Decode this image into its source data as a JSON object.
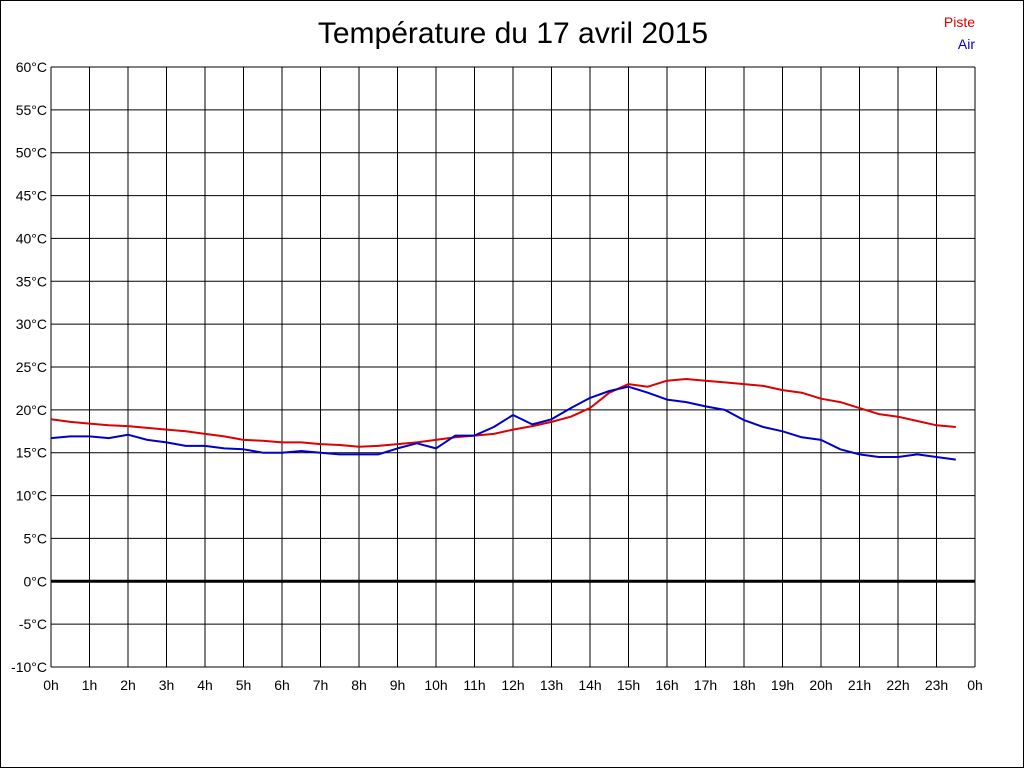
{
  "chart_data": {
    "type": "line",
    "title": "Température du 17 avril 2015",
    "xlabel": "",
    "ylabel": "",
    "x_tick_labels": [
      "0h",
      "1h",
      "2h",
      "3h",
      "4h",
      "5h",
      "6h",
      "7h",
      "8h",
      "9h",
      "10h",
      "11h",
      "12h",
      "13h",
      "14h",
      "15h",
      "16h",
      "17h",
      "18h",
      "19h",
      "20h",
      "21h",
      "22h",
      "23h",
      "0h"
    ],
    "y_tick_labels": [
      "60°C",
      "55°C",
      "50°C",
      "45°C",
      "40°C",
      "35°C",
      "30°C",
      "25°C",
      "20°C",
      "15°C",
      "10°C",
      "5°C",
      "0°C",
      "-5°C",
      "-10°C"
    ],
    "xlim": [
      0,
      24
    ],
    "ylim": [
      -10,
      60
    ],
    "grid": true,
    "legend_position": "top-right",
    "x": [
      0,
      0.5,
      1,
      1.5,
      2,
      2.5,
      3,
      3.5,
      4,
      4.5,
      5,
      5.5,
      6,
      6.5,
      7,
      7.5,
      8,
      8.5,
      9,
      9.5,
      10,
      10.5,
      11,
      11.5,
      12,
      12.5,
      13,
      13.5,
      14,
      14.5,
      15,
      15.5,
      16,
      16.5,
      17,
      17.5,
      18,
      18.5,
      19,
      19.5,
      20,
      20.5,
      21,
      21.5,
      22,
      22.5,
      23,
      23.5
    ],
    "series": [
      {
        "name": "Piste",
        "color": "#dd0000",
        "values": [
          18.9,
          18.6,
          18.4,
          18.2,
          18.1,
          17.9,
          17.7,
          17.5,
          17.2,
          16.9,
          16.5,
          16.4,
          16.2,
          16.2,
          16.0,
          15.9,
          15.7,
          15.8,
          16.0,
          16.2,
          16.5,
          16.8,
          17.0,
          17.2,
          17.7,
          18.1,
          18.6,
          19.2,
          20.2,
          22.0,
          23.0,
          22.7,
          23.4,
          23.6,
          23.4,
          23.2,
          23.0,
          22.8,
          22.3,
          22.0,
          21.3,
          20.9,
          20.2,
          19.5,
          19.2,
          18.7,
          18.2,
          18.0
        ]
      },
      {
        "name": "Air",
        "color": "#0000cc",
        "values": [
          16.7,
          16.9,
          16.9,
          16.7,
          17.1,
          16.5,
          16.2,
          15.8,
          15.8,
          15.5,
          15.4,
          15.0,
          15.0,
          15.2,
          15.0,
          14.8,
          14.8,
          14.8,
          15.5,
          16.1,
          15.5,
          17.0,
          17.0,
          18.0,
          19.4,
          18.3,
          18.9,
          20.2,
          21.4,
          22.2,
          22.7,
          22.0,
          21.2,
          20.9,
          20.4,
          20.0,
          18.8,
          18.0,
          17.5,
          16.8,
          16.5,
          15.4,
          14.8,
          14.5,
          14.5,
          14.8,
          14.5,
          14.2
        ]
      }
    ]
  }
}
